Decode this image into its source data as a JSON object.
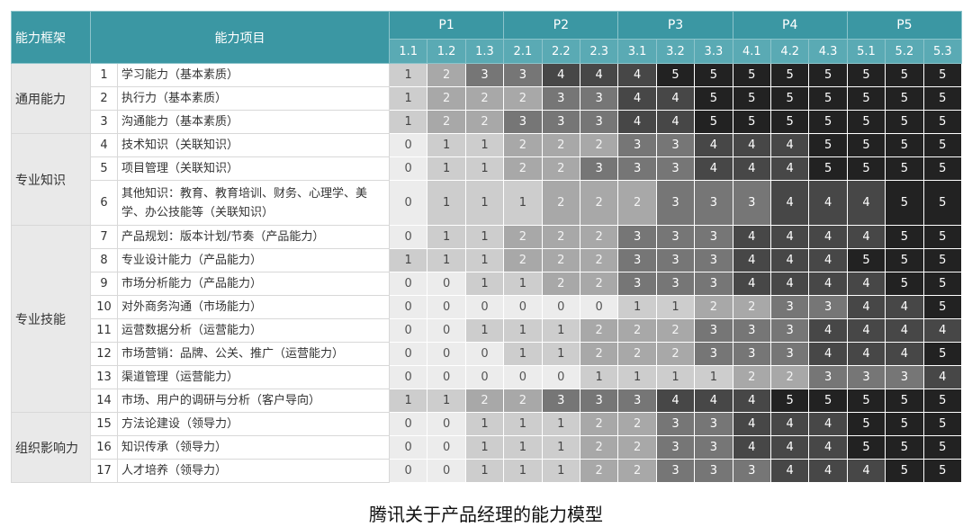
{
  "header": {
    "framework": "能力框架",
    "item": "能力项目",
    "levels": [
      {
        "name": "P1",
        "sub": [
          "1.1",
          "1.2",
          "1.3"
        ]
      },
      {
        "name": "P2",
        "sub": [
          "2.1",
          "2.2",
          "2.3"
        ]
      },
      {
        "name": "P3",
        "sub": [
          "3.1",
          "3.2",
          "3.3"
        ]
      },
      {
        "name": "P4",
        "sub": [
          "4.1",
          "4.2",
          "4.3"
        ]
      },
      {
        "name": "P5",
        "sub": [
          "5.1",
          "5.2",
          "5.3"
        ]
      }
    ]
  },
  "groups": [
    {
      "name": "通用能力",
      "rows": [
        {
          "no": 1,
          "item": "学习能力（基本素质）",
          "values": [
            1,
            2,
            3,
            3,
            4,
            4,
            4,
            5,
            5,
            5,
            5,
            5,
            5,
            5,
            5
          ]
        },
        {
          "no": 2,
          "item": "执行力（基本素质）",
          "values": [
            1,
            2,
            2,
            2,
            3,
            3,
            4,
            4,
            5,
            5,
            5,
            5,
            5,
            5,
            5
          ]
        },
        {
          "no": 3,
          "item": "沟通能力（基本素质）",
          "values": [
            1,
            2,
            2,
            3,
            3,
            3,
            4,
            4,
            5,
            5,
            5,
            5,
            5,
            5,
            5
          ]
        }
      ]
    },
    {
      "name": "专业知识",
      "rows": [
        {
          "no": 4,
          "item": "技术知识（关联知识）",
          "values": [
            0,
            1,
            1,
            2,
            2,
            2,
            3,
            3,
            4,
            4,
            4,
            5,
            5,
            5,
            5
          ]
        },
        {
          "no": 5,
          "item": "项目管理（关联知识）",
          "values": [
            0,
            1,
            1,
            2,
            2,
            3,
            3,
            3,
            4,
            4,
            4,
            5,
            5,
            5,
            5
          ]
        },
        {
          "no": 6,
          "item": "其他知识：教育、教育培训、财务、心理学、美学、办公技能等（关联知识）",
          "values": [
            0,
            1,
            1,
            1,
            2,
            2,
            2,
            3,
            3,
            3,
            4,
            4,
            4,
            5,
            5
          ]
        }
      ]
    },
    {
      "name": "专业技能",
      "rows": [
        {
          "no": 7,
          "item": "产品规划：版本计划/节奏（产品能力）",
          "values": [
            0,
            1,
            1,
            2,
            2,
            2,
            3,
            3,
            3,
            4,
            4,
            4,
            4,
            5,
            5
          ]
        },
        {
          "no": 8,
          "item": "专业设计能力（产品能力）",
          "values": [
            1,
            1,
            1,
            2,
            2,
            2,
            3,
            3,
            3,
            4,
            4,
            4,
            5,
            5,
            5
          ]
        },
        {
          "no": 9,
          "item": "市场分析能力（产品能力）",
          "values": [
            0,
            0,
            1,
            1,
            2,
            2,
            3,
            3,
            3,
            4,
            4,
            4,
            4,
            5,
            5
          ]
        },
        {
          "no": 10,
          "item": "对外商务沟通（市场能力）",
          "values": [
            0,
            0,
            0,
            0,
            0,
            0,
            1,
            1,
            2,
            2,
            3,
            3,
            4,
            4,
            5
          ]
        },
        {
          "no": 11,
          "item": "运营数据分析（运营能力）",
          "values": [
            0,
            0,
            1,
            1,
            1,
            2,
            2,
            2,
            3,
            3,
            3,
            4,
            4,
            4,
            4
          ]
        },
        {
          "no": 12,
          "item": "市场营销：品牌、公关、推广（运营能力）",
          "values": [
            0,
            0,
            0,
            1,
            1,
            2,
            2,
            2,
            3,
            3,
            3,
            4,
            4,
            4,
            5
          ]
        },
        {
          "no": 13,
          "item": "渠道管理（运营能力）",
          "values": [
            0,
            0,
            0,
            0,
            0,
            1,
            1,
            1,
            1,
            2,
            2,
            3,
            3,
            3,
            4
          ]
        },
        {
          "no": 14,
          "item": "市场、用户的调研与分析（客户导向）",
          "values": [
            1,
            1,
            2,
            2,
            3,
            3,
            3,
            4,
            4,
            4,
            5,
            5,
            5,
            5,
            5
          ]
        }
      ]
    },
    {
      "name": "组织影响力",
      "rows": [
        {
          "no": 15,
          "item": "方法论建设（领导力）",
          "values": [
            0,
            0,
            1,
            1,
            1,
            2,
            2,
            3,
            3,
            4,
            4,
            4,
            5,
            5,
            5
          ]
        },
        {
          "no": 16,
          "item": "知识传承（领导力）",
          "values": [
            0,
            0,
            1,
            1,
            1,
            2,
            2,
            3,
            3,
            4,
            4,
            4,
            5,
            5,
            5
          ]
        },
        {
          "no": 17,
          "item": "人才培养（领导力）",
          "values": [
            0,
            0,
            1,
            1,
            1,
            2,
            2,
            3,
            3,
            3,
            4,
            4,
            4,
            5,
            5
          ]
        }
      ]
    }
  ],
  "caption": "腾讯关于产品经理的能力模型"
}
